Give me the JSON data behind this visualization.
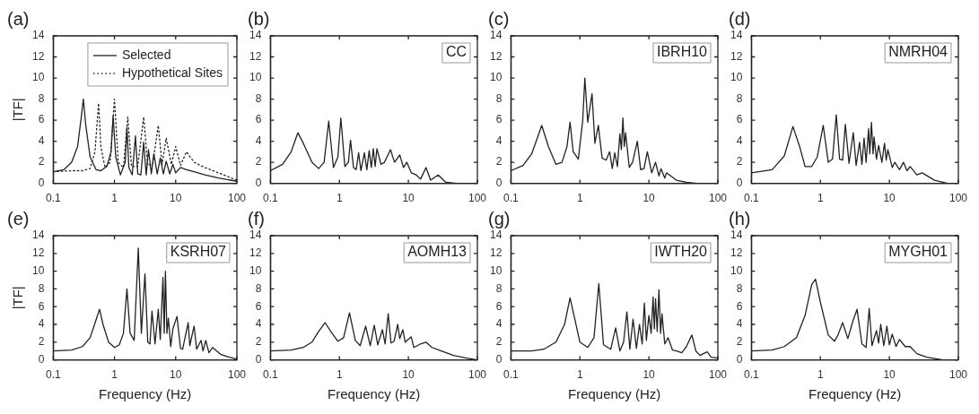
{
  "chart_data": [
    {
      "type": "line",
      "title": "(a)",
      "ylabel": "|TF|",
      "log": "x",
      "xlim": [
        0.1,
        100
      ],
      "xticks": [
        0.1,
        1,
        10,
        100
      ],
      "ylim": [
        0,
        14
      ],
      "yticks": [
        0,
        2,
        4,
        6,
        8,
        10,
        12,
        14
      ],
      "legend": "top right",
      "series": [
        {
          "name": "Selected",
          "color": "#222222",
          "line_style": "solid",
          "x": [
            0.1,
            0.15,
            0.2,
            0.25,
            0.29,
            0.31,
            0.34,
            0.4,
            0.5,
            0.6,
            0.75,
            0.88,
            0.95,
            1.05,
            1.25,
            1.5,
            1.6,
            1.72,
            1.95,
            2.2,
            2.4,
            2.7,
            3.0,
            3.3,
            3.6,
            4.0,
            4.4,
            5.0,
            5.6,
            6.3,
            7,
            8,
            9,
            10,
            12,
            15,
            20,
            30,
            50,
            100
          ],
          "values": [
            1.1,
            1.3,
            2,
            3.5,
            6.5,
            8,
            5.5,
            2.5,
            1.3,
            1.2,
            1.6,
            3,
            6.4,
            2.5,
            0.8,
            2,
            5.3,
            1.5,
            0.8,
            4.5,
            0.9,
            0.8,
            3.9,
            0.8,
            3.2,
            0.9,
            2.8,
            0.9,
            2.4,
            0.9,
            2.1,
            0.9,
            1.8,
            1.0,
            1.5,
            1.3,
            1.1,
            0.8,
            0.5,
            0.2
          ]
        },
        {
          "name": "Hypothetical Sites",
          "color": "#222222",
          "line_style": "dotted",
          "x": [
            0.1,
            0.2,
            0.3,
            0.4,
            0.48,
            0.55,
            0.6,
            0.7,
            0.85,
            1.0,
            1.15,
            1.4,
            1.65,
            1.9,
            2.4,
            3.0,
            3.5,
            4.2,
            5.2,
            6,
            7,
            8.5,
            10,
            12,
            15,
            20,
            30,
            50,
            100
          ],
          "values": [
            1.1,
            1.2,
            1.2,
            1.4,
            3,
            7.6,
            3.5,
            1.5,
            2,
            8,
            2,
            1.5,
            6.3,
            1.6,
            1.6,
            6.3,
            1.7,
            1.8,
            5.5,
            1.8,
            4.3,
            1.8,
            3.5,
            1.7,
            3,
            2,
            1.5,
            1,
            0.3
          ]
        }
      ]
    },
    {
      "type": "line",
      "title": "(b)",
      "annotations": [
        "CC"
      ],
      "log": "x",
      "xlim": [
        0.1,
        100
      ],
      "xticks": [
        0.1,
        1,
        10,
        100
      ],
      "ylim": [
        0,
        14
      ],
      "yticks": [
        0,
        2,
        4,
        6,
        8,
        10,
        12,
        14
      ],
      "series": [
        {
          "color": "#222222",
          "x": [
            0.1,
            0.15,
            0.2,
            0.25,
            0.3,
            0.4,
            0.5,
            0.6,
            0.7,
            0.82,
            0.95,
            1.05,
            1.2,
            1.35,
            1.45,
            1.6,
            1.75,
            1.9,
            2.05,
            2.3,
            2.5,
            2.7,
            2.9,
            3.1,
            3.3,
            3.5,
            4,
            4.5,
            5.5,
            6.3,
            7.5,
            8.5,
            9.5,
            11,
            13,
            15,
            18,
            21,
            27,
            35,
            50,
            100
          ],
          "values": [
            1.2,
            1.8,
            3,
            4.8,
            3.8,
            2,
            1.4,
            2,
            5.9,
            1.5,
            2.5,
            6.2,
            1.6,
            2,
            4.1,
            1.5,
            1.3,
            2.9,
            1.2,
            2.9,
            1.3,
            3.1,
            1.5,
            3.3,
            1.6,
            3.3,
            1.8,
            2,
            3.2,
            2,
            2.7,
            1.5,
            2,
            1,
            0.8,
            0.4,
            1.5,
            0.3,
            0.8,
            0.1,
            0,
            0
          ]
        }
      ]
    },
    {
      "type": "line",
      "title": "(c)",
      "annotations": [
        "IBRH10"
      ],
      "log": "x",
      "xlim": [
        0.1,
        100
      ],
      "xticks": [
        0.1,
        1,
        10,
        100
      ],
      "ylim": [
        0,
        14
      ],
      "yticks": [
        0,
        2,
        4,
        6,
        8,
        10,
        12,
        14
      ],
      "series": [
        {
          "color": "#222222",
          "x": [
            0.1,
            0.15,
            0.2,
            0.28,
            0.35,
            0.45,
            0.55,
            0.65,
            0.72,
            0.8,
            0.95,
            1.1,
            1.18,
            1.3,
            1.5,
            1.65,
            1.85,
            2.1,
            2.4,
            2.7,
            2.95,
            3.2,
            3.5,
            3.8,
            4.0,
            4.2,
            4.4,
            4.6,
            5.2,
            5.8,
            6.8,
            7.6,
            8.5,
            9.5,
            11,
            12.5,
            14,
            15,
            17,
            18,
            25,
            35,
            50,
            100
          ],
          "values": [
            1.2,
            1.7,
            2.8,
            5.5,
            3.5,
            1.8,
            2,
            3.5,
            5.8,
            3,
            2.3,
            6,
            10,
            5.8,
            8.5,
            3.8,
            5.5,
            2.4,
            2.2,
            3,
            1.4,
            2.9,
            1.6,
            4.7,
            3.2,
            6.2,
            3.5,
            4.8,
            1.5,
            2,
            4,
            1.3,
            1.4,
            3,
            1,
            2,
            0.7,
            1.4,
            0.5,
            1,
            0.3,
            0.1,
            0,
            0
          ]
        }
      ]
    },
    {
      "type": "line",
      "title": "(d)",
      "annotations": [
        "NMRH04"
      ],
      "log": "x",
      "xlim": [
        0.1,
        100
      ],
      "xticks": [
        0.1,
        1,
        10,
        100
      ],
      "ylim": [
        0,
        14
      ],
      "yticks": [
        0,
        2,
        4,
        6,
        8,
        10,
        12,
        14
      ],
      "series": [
        {
          "color": "#222222",
          "x": [
            0.1,
            0.2,
            0.3,
            0.4,
            0.5,
            0.6,
            0.75,
            0.9,
            1.1,
            1.3,
            1.5,
            1.7,
            1.9,
            2.1,
            2.3,
            2.6,
            3.0,
            3.3,
            3.7,
            4.0,
            4.3,
            4.6,
            5.0,
            5.2,
            5.5,
            5.8,
            6,
            6.5,
            7,
            7.8,
            8.5,
            9,
            9.5,
            11,
            12,
            14,
            16,
            18,
            20,
            25,
            30,
            45,
            70,
            100
          ],
          "values": [
            1.0,
            1.3,
            2.6,
            5.4,
            3.5,
            1.6,
            1.6,
            2.5,
            5.5,
            2,
            2.3,
            6.5,
            2.3,
            2.2,
            5.6,
            1.9,
            4.8,
            1.7,
            3.9,
            1.8,
            4.3,
            2,
            5.2,
            2.8,
            5.8,
            2.8,
            4.4,
            2.3,
            3.6,
            2,
            3.8,
            2.2,
            3.2,
            1.5,
            2,
            1.3,
            2,
            1.2,
            1.6,
            0.8,
            1,
            0.3,
            0,
            0
          ]
        }
      ]
    },
    {
      "type": "line",
      "title": "(e)",
      "annotations": [
        "KSRH07"
      ],
      "xlabel": "Frequency (Hz)",
      "ylabel": "|TF|",
      "log": "x",
      "xlim": [
        0.1,
        100
      ],
      "xticks": [
        0.1,
        1,
        10,
        100
      ],
      "ylim": [
        0,
        14
      ],
      "yticks": [
        0,
        2,
        4,
        6,
        8,
        10,
        12,
        14
      ],
      "series": [
        {
          "color": "#222222",
          "x": [
            0.1,
            0.2,
            0.3,
            0.4,
            0.5,
            0.57,
            0.65,
            0.8,
            1.0,
            1.2,
            1.4,
            1.6,
            1.8,
            2.1,
            2.45,
            2.75,
            3.15,
            3.5,
            3.8,
            4.1,
            4.6,
            5.2,
            5.6,
            6.2,
            6.5,
            6.8,
            7.2,
            7.6,
            8.3,
            9,
            10.5,
            12,
            13,
            16,
            17,
            20,
            22,
            26,
            28,
            31,
            35,
            40,
            55,
            75,
            100
          ],
          "values": [
            1.0,
            1.1,
            1.5,
            2.5,
            4.5,
            5.7,
            4,
            2,
            1.4,
            1.7,
            3,
            8,
            3,
            2.2,
            12.6,
            3,
            9.7,
            2,
            1.8,
            5.5,
            1.8,
            5.7,
            2.3,
            9.3,
            3,
            10,
            3,
            4.7,
            1.5,
            3.5,
            4.9,
            1.3,
            1.2,
            4.2,
            1.6,
            3.8,
            1.2,
            2.2,
            1,
            2.2,
            0.8,
            1.4,
            0.6,
            0.3,
            0.1
          ]
        }
      ]
    },
    {
      "type": "line",
      "title": "(f)",
      "annotations": [
        "AOMH13"
      ],
      "xlabel": "Frequency (Hz)",
      "log": "x",
      "xlim": [
        0.1,
        100
      ],
      "xticks": [
        0.1,
        1,
        10,
        100
      ],
      "ylim": [
        0,
        14
      ],
      "yticks": [
        0,
        2,
        4,
        6,
        8,
        10,
        12,
        14
      ],
      "series": [
        {
          "color": "#222222",
          "x": [
            0.1,
            0.2,
            0.3,
            0.4,
            0.5,
            0.62,
            0.75,
            0.95,
            1.15,
            1.4,
            1.7,
            2.0,
            2.4,
            2.8,
            3.2,
            3.6,
            4.2,
            4.6,
            5.1,
            5.6,
            6.2,
            7,
            7.5,
            8.3,
            9,
            11,
            12,
            15,
            18,
            22,
            30,
            45,
            70,
            100
          ],
          "values": [
            1.0,
            1.1,
            1.4,
            2,
            3.2,
            4.2,
            3.2,
            2.1,
            2.5,
            5.3,
            2.2,
            1.6,
            3.8,
            1.6,
            3.9,
            1.7,
            3.4,
            1.8,
            5.2,
            1.9,
            2.1,
            4,
            2.4,
            3.4,
            2,
            2.6,
            1.4,
            1.8,
            2,
            1.4,
            1,
            0.5,
            0.2,
            0
          ]
        }
      ]
    },
    {
      "type": "line",
      "title": "(g)",
      "annotations": [
        "IWTH20"
      ],
      "xlabel": "Frequency (Hz)",
      "log": "x",
      "xlim": [
        0.1,
        100
      ],
      "xticks": [
        0.1,
        1,
        10,
        100
      ],
      "ylim": [
        0,
        14
      ],
      "yticks": [
        0,
        2,
        4,
        6,
        8,
        10,
        12,
        14
      ],
      "series": [
        {
          "color": "#222222",
          "x": [
            0.1,
            0.2,
            0.3,
            0.45,
            0.6,
            0.72,
            0.85,
            1.0,
            1.3,
            1.6,
            1.88,
            2.2,
            2.8,
            3.3,
            3.8,
            4.3,
            4.8,
            5.3,
            5.9,
            6.6,
            7.3,
            8,
            8.6,
            9.2,
            10,
            10.8,
            11.5,
            12,
            12.5,
            13.2,
            14,
            14.8,
            15.5,
            17,
            19,
            22,
            25,
            30,
            35,
            42,
            48,
            55,
            70,
            80,
            100
          ],
          "values": [
            1.0,
            1.0,
            1.2,
            2,
            4,
            7,
            4.5,
            2,
            1.4,
            2.5,
            8.6,
            1.7,
            1.2,
            3.6,
            1,
            2,
            5.4,
            1.2,
            4.6,
            1.3,
            4,
            1.8,
            6.4,
            2.2,
            5,
            3,
            7.1,
            3.5,
            6.9,
            3.2,
            7.9,
            3,
            5.2,
            1.8,
            2.5,
            1.1,
            1,
            0.8,
            1.5,
            2.8,
            1,
            0.5,
            0.9,
            0.3,
            0.2
          ]
        }
      ]
    },
    {
      "type": "line",
      "title": "(h)",
      "annotations": [
        "MYGH01"
      ],
      "xlabel": "Frequency (Hz)",
      "log": "x",
      "xlim": [
        0.1,
        100
      ],
      "xticks": [
        0.1,
        1,
        10,
        100
      ],
      "ylim": [
        0,
        14
      ],
      "yticks": [
        0,
        2,
        4,
        6,
        8,
        10,
        12,
        14
      ],
      "series": [
        {
          "color": "#222222",
          "x": [
            0.1,
            0.2,
            0.3,
            0.45,
            0.6,
            0.75,
            0.85,
            1.0,
            1.3,
            1.6,
            1.8,
            2.1,
            2.5,
            3.0,
            3.4,
            4.0,
            4.6,
            5.1,
            5.6,
            6.5,
            7,
            7.5,
            8.3,
            9.2,
            10,
            11,
            12.5,
            14,
            17,
            20,
            25,
            35,
            60,
            100
          ],
          "values": [
            1.0,
            1.1,
            1.5,
            2.5,
            5,
            8.5,
            9.1,
            6.5,
            2.8,
            2.1,
            2.8,
            4.2,
            2.4,
            4.5,
            5.7,
            1.8,
            1.4,
            5.8,
            1.6,
            3.3,
            1.9,
            4,
            1.6,
            3.8,
            1.7,
            2.9,
            1.5,
            2.3,
            1.5,
            1.5,
            0.7,
            0.3,
            0,
            0
          ]
        }
      ]
    }
  ]
}
